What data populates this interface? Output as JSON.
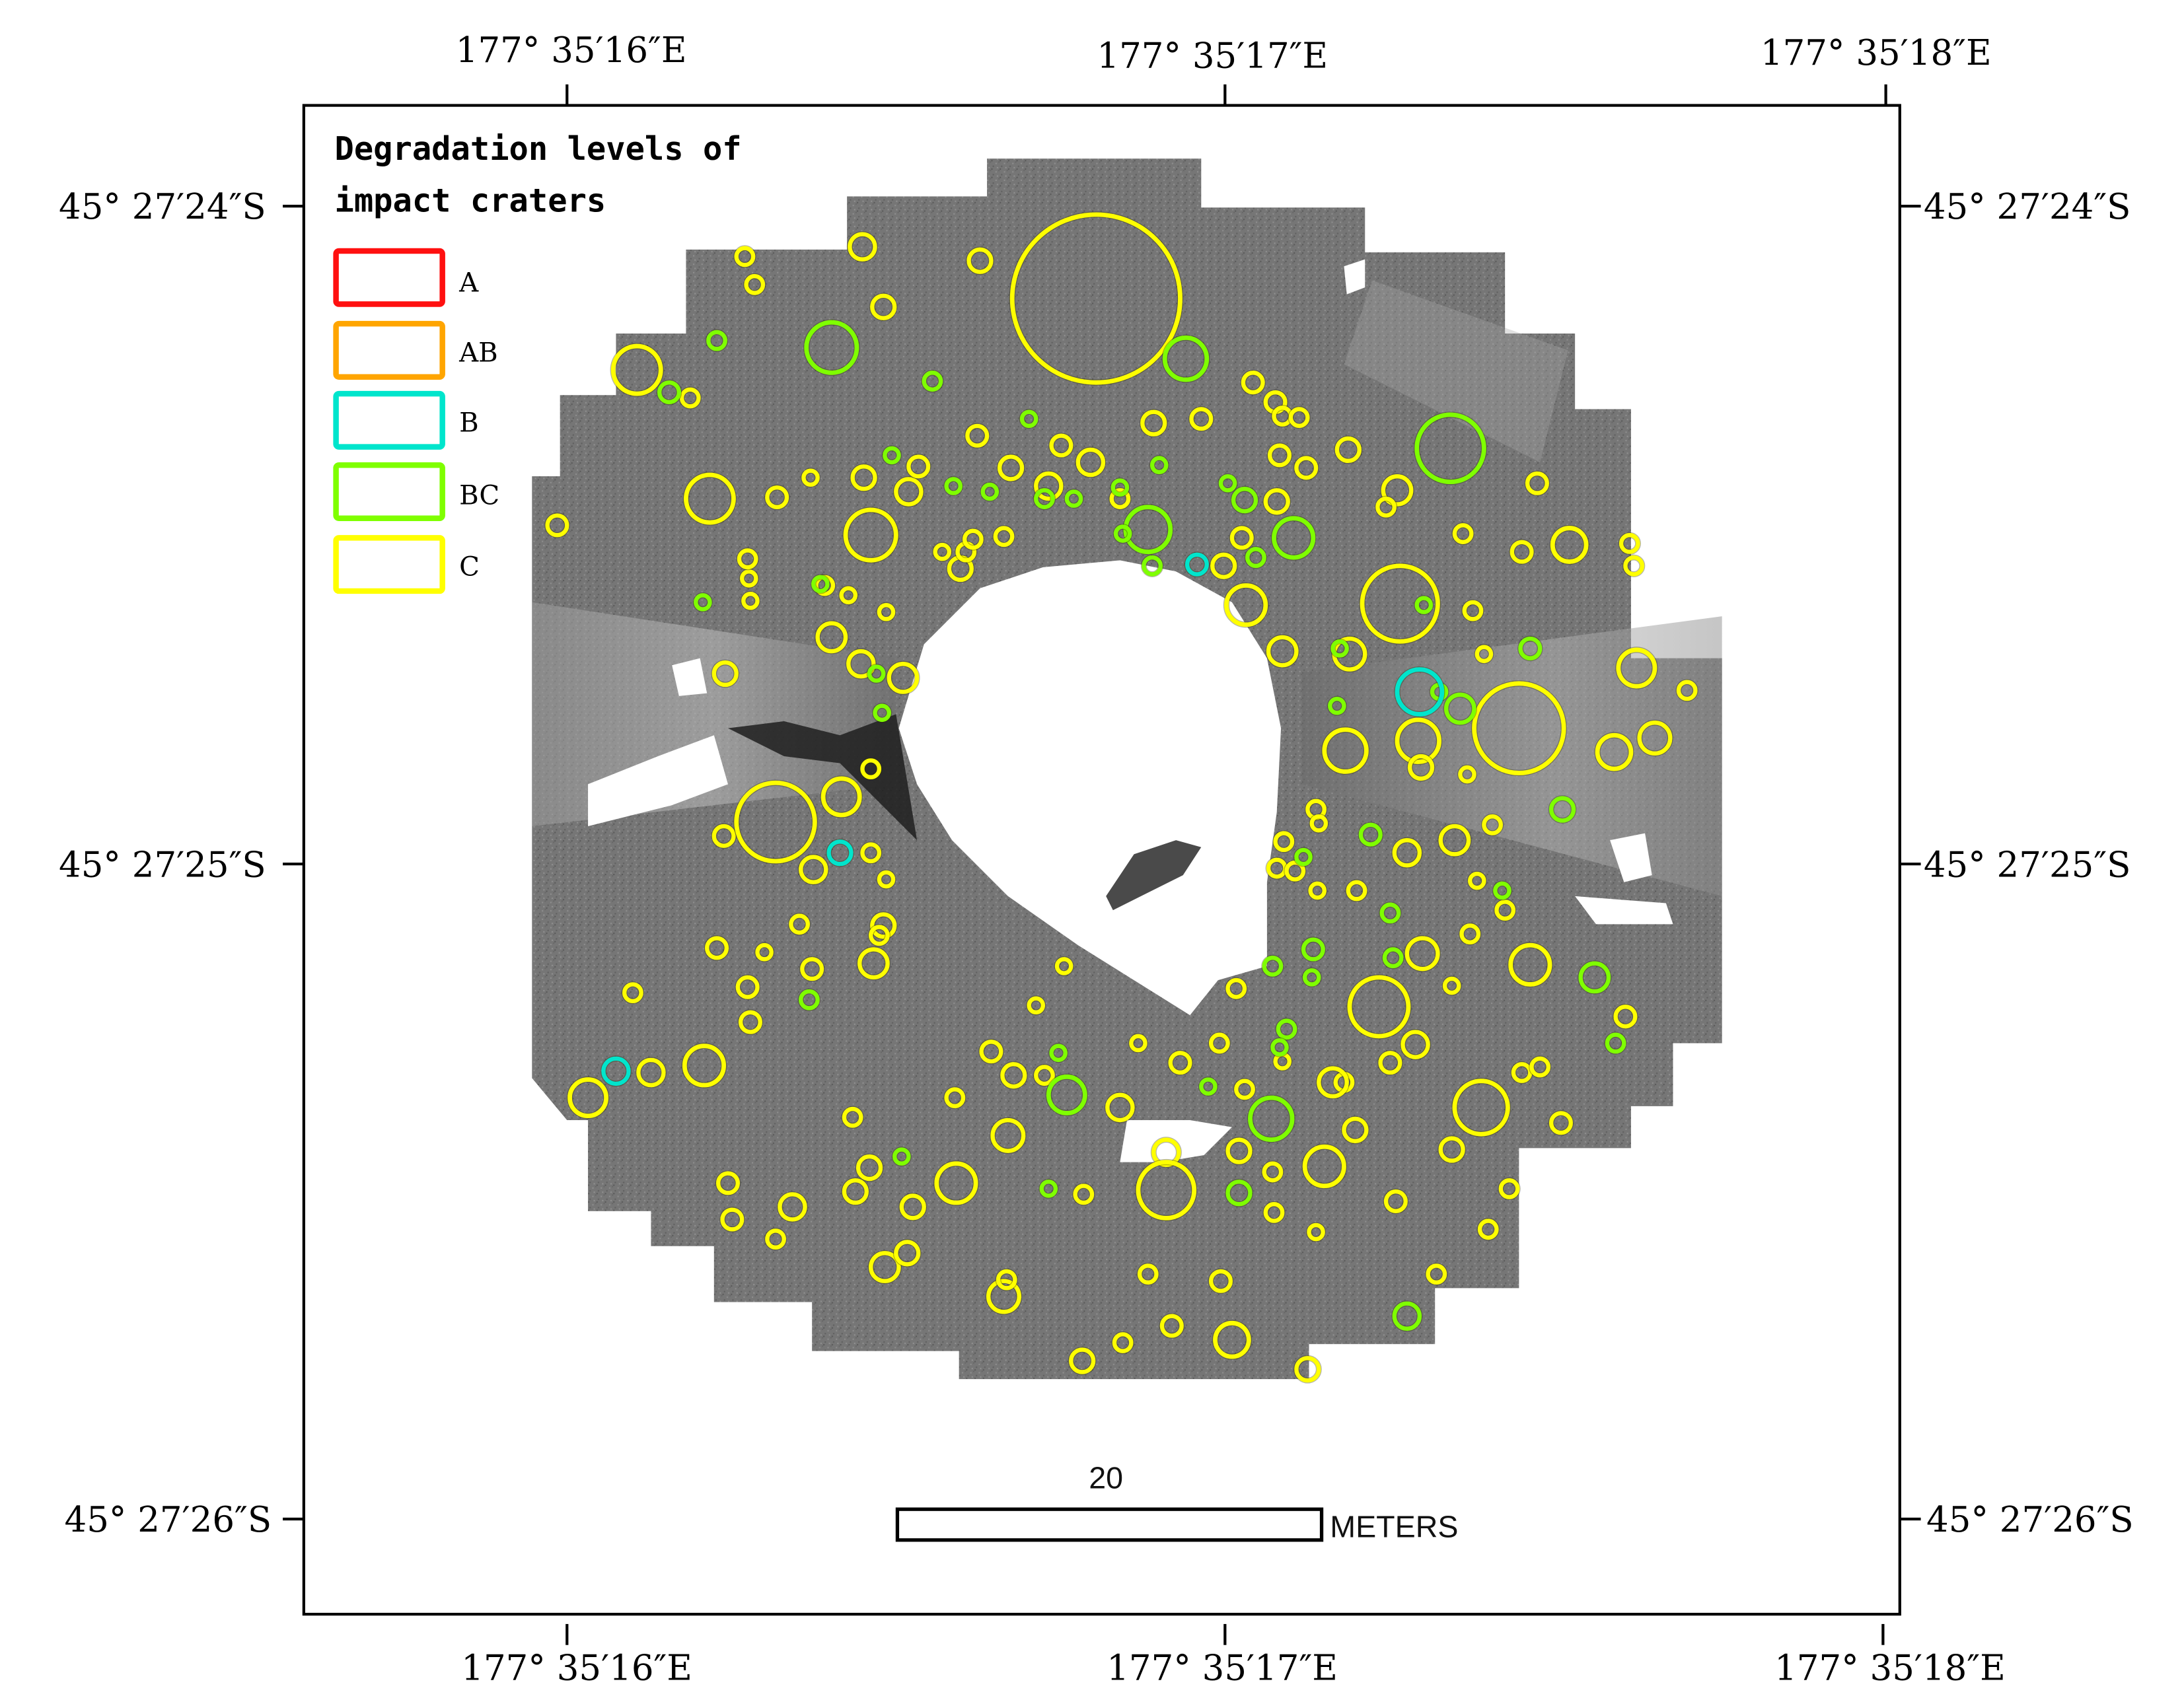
{
  "figure": {
    "legend": {
      "title_line1": "Degradation levels of",
      "title_line2": "impact craters",
      "items": [
        {
          "label": "A",
          "color": "#FF1010"
        },
        {
          "label": "AB",
          "color": "#FFA500"
        },
        {
          "label": "B",
          "color": "#00E5CC"
        },
        {
          "label": "BC",
          "color": "#7FFF00"
        },
        {
          "label": "C",
          "color": "#FFFF00"
        }
      ]
    },
    "axes": {
      "top_labels": [
        "177° 35′16″E",
        "177° 35′17″E",
        "177° 35′18″E"
      ],
      "bottom_labels": [
        "177° 35′16″E",
        "177° 35′17″E",
        "177° 35′18″E"
      ],
      "left_labels": [
        "45° 27′24″S",
        "45° 27′25″S",
        "45° 27′26″S"
      ],
      "right_labels": [
        "45° 27′24″S",
        "45° 27′25″S",
        "45° 27′26″S"
      ]
    },
    "scale_bar": {
      "value": "20",
      "unit": "METERS"
    },
    "colors": {
      "A": "#FF1010",
      "AB": "#FFA500",
      "B": "#00E5CC",
      "BC": "#7FFF00",
      "C": "#FFFF00",
      "terrain": "#7a7a7a",
      "terrain_dark": "#3c3c3c",
      "frame": "#000000"
    }
  },
  "craters": {
    "C": [
      [
        783,
        213,
        60
      ],
      [
        455,
        264,
        17
      ],
      [
        507,
        356,
        17
      ],
      [
        398,
        375,
        7
      ],
      [
        532,
        183,
        6
      ],
      [
        539,
        203,
        6
      ],
      [
        616,
        176,
        9
      ],
      [
        631,
        219,
        8
      ],
      [
        700,
        186,
        8
      ],
      [
        493,
        284,
        6
      ],
      [
        555,
        355,
        7
      ],
      [
        579,
        341,
        5
      ],
      [
        617,
        341,
        8
      ],
      [
        649,
        351,
        9
      ],
      [
        656,
        333,
        7
      ],
      [
        622,
        382,
        18
      ],
      [
        698,
        311,
        7
      ],
      [
        722,
        334,
        8
      ],
      [
        749,
        347,
        9
      ],
      [
        758,
        318,
        7
      ],
      [
        779,
        330,
        9
      ],
      [
        800,
        356,
        6
      ],
      [
        824,
        302,
        8
      ],
      [
        858,
        299,
        7
      ],
      [
        895,
        273,
        7
      ],
      [
        911,
        287,
        7
      ],
      [
        916,
        297,
        6
      ],
      [
        928,
        298,
        6
      ],
      [
        914,
        325,
        7
      ],
      [
        933,
        334,
        7
      ],
      [
        963,
        321,
        8
      ],
      [
        998,
        350,
        10
      ],
      [
        990,
        362,
        6
      ],
      [
        912,
        358,
        8
      ],
      [
        887,
        384,
        7
      ],
      [
        874,
        404,
        8
      ],
      [
        890,
        432,
        14
      ],
      [
        1000,
        431,
        27
      ],
      [
        1045,
        381,
        6
      ],
      [
        1098,
        345,
        7
      ],
      [
        1087,
        394,
        7
      ],
      [
        1121,
        389,
        12
      ],
      [
        1164,
        388,
        6
      ],
      [
        1167,
        404,
        6
      ],
      [
        1052,
        436,
        6
      ],
      [
        1060,
        467,
        5
      ],
      [
        964,
        467,
        11
      ],
      [
        916,
        465,
        10
      ],
      [
        961,
        536,
        15
      ],
      [
        1013,
        529,
        15
      ],
      [
        1015,
        548,
        8
      ],
      [
        1085,
        520,
        32
      ],
      [
        1153,
        537,
        12
      ],
      [
        1182,
        527,
        11
      ],
      [
        1169,
        477,
        13
      ],
      [
        1205,
        493,
        6
      ],
      [
        1048,
        553,
        5
      ],
      [
        940,
        578,
        6
      ],
      [
        942,
        588,
        5
      ],
      [
        917,
        601,
        6
      ],
      [
        1039,
        600,
        10
      ],
      [
        1066,
        589,
        6
      ],
      [
        1005,
        609,
        9
      ],
      [
        912,
        620,
        6
      ],
      [
        925,
        622,
        6
      ],
      [
        941,
        636,
        5
      ],
      [
        969,
        636,
        6
      ],
      [
        1055,
        629,
        5
      ],
      [
        1075,
        650,
        6
      ],
      [
        1050,
        667,
        6
      ],
      [
        1016,
        681,
        11
      ],
      [
        1093,
        689,
        14
      ],
      [
        985,
        719,
        21
      ],
      [
        1037,
        704,
        5
      ],
      [
        1161,
        726,
        7
      ],
      [
        1011,
        746,
        9
      ],
      [
        993,
        759,
        7
      ],
      [
        960,
        773,
        6
      ],
      [
        952,
        773,
        10
      ],
      [
        1087,
        766,
        6
      ],
      [
        1100,
        762,
        6
      ],
      [
        1058,
        791,
        19
      ],
      [
        1115,
        802,
        7
      ],
      [
        1037,
        821,
        8
      ],
      [
        1078,
        849,
        6
      ],
      [
        968,
        807,
        8
      ],
      [
        946,
        833,
        14
      ],
      [
        997,
        858,
        7
      ],
      [
        1063,
        878,
        6
      ],
      [
        1026,
        910,
        6
      ],
      [
        940,
        880,
        5
      ],
      [
        910,
        866,
        6
      ],
      [
        889,
        778,
        6
      ],
      [
        885,
        822,
        8
      ],
      [
        883,
        706,
        6
      ],
      [
        916,
        758,
        5
      ],
      [
        843,
        759,
        7
      ],
      [
        871,
        745,
        6
      ],
      [
        813,
        745,
        5
      ],
      [
        760,
        690,
        5
      ],
      [
        740,
        718,
        5
      ],
      [
        800,
        791,
        9
      ],
      [
        720,
        811,
        11
      ],
      [
        708,
        751,
        7
      ],
      [
        724,
        768,
        8
      ],
      [
        746,
        768,
        6
      ],
      [
        682,
        784,
        6
      ],
      [
        609,
        798,
        6
      ],
      [
        683,
        845,
        14
      ],
      [
        652,
        862,
        8
      ],
      [
        621,
        834,
        8
      ],
      [
        611,
        851,
        8
      ],
      [
        566,
        862,
        9
      ],
      [
        520,
        845,
        7
      ],
      [
        523,
        871,
        7
      ],
      [
        554,
        885,
        6
      ],
      [
        632,
        905,
        10
      ],
      [
        648,
        895,
        8
      ],
      [
        717,
        926,
        11
      ],
      [
        719,
        914,
        6
      ],
      [
        773,
        972,
        8
      ],
      [
        802,
        959,
        6
      ],
      [
        837,
        947,
        7
      ],
      [
        880,
        957,
        12
      ],
      [
        934,
        978,
        8
      ],
      [
        820,
        910,
        6
      ],
      [
        872,
        915,
        7
      ],
      [
        833,
        823,
        9
      ],
      [
        833,
        850,
        20
      ],
      [
        774,
        853,
        6
      ],
      [
        909,
        837,
        6
      ],
      [
        503,
        761,
        14
      ],
      [
        465,
        766,
        9
      ],
      [
        420,
        784,
        13
      ],
      [
        452,
        709,
        6
      ],
      [
        536,
        730,
        7
      ],
      [
        534,
        705,
        7
      ],
      [
        512,
        677,
        7
      ],
      [
        546,
        680,
        5
      ],
      [
        580,
        692,
        7
      ],
      [
        624,
        688,
        10
      ],
      [
        571,
        660,
        6
      ],
      [
        631,
        661,
        8
      ],
      [
        628,
        668,
        6
      ],
      [
        622,
        609,
        6
      ],
      [
        633,
        628,
        5
      ],
      [
        581,
        621,
        9
      ],
      [
        517,
        597,
        7
      ],
      [
        554,
        587,
        28
      ],
      [
        601,
        569,
        13
      ],
      [
        622,
        549,
        6
      ],
      [
        645,
        484,
        10
      ],
      [
        615,
        474,
        9
      ],
      [
        594,
        455,
        10
      ],
      [
        518,
        481,
        8
      ],
      [
        633,
        437,
        5
      ],
      [
        606,
        425,
        5
      ],
      [
        589,
        418,
        6
      ],
      [
        535,
        413,
        5
      ],
      [
        536,
        429,
        5
      ],
      [
        686,
        406,
        8
      ],
      [
        673,
        394,
        5
      ],
      [
        690,
        394,
        6
      ],
      [
        695,
        385,
        6
      ],
      [
        717,
        383,
        6
      ],
      [
        534,
        399,
        6
      ]
    ],
    "BC": [
      [
        594,
        248,
        18
      ],
      [
        847,
        256,
        15
      ],
      [
        1036,
        320,
        24
      ],
      [
        820,
        378,
        16
      ],
      [
        924,
        384,
        14
      ],
      [
        512,
        243,
        6
      ],
      [
        478,
        280,
        7
      ],
      [
        666,
        272,
        6
      ],
      [
        735,
        299,
        5
      ],
      [
        637,
        325,
        5
      ],
      [
        681,
        347,
        5
      ],
      [
        707,
        351,
        5
      ],
      [
        746,
        356,
        6
      ],
      [
        767,
        356,
        5
      ],
      [
        828,
        332,
        5
      ],
      [
        800,
        348,
        5
      ],
      [
        802,
        381,
        5
      ],
      [
        823,
        404,
        6
      ],
      [
        877,
        345,
        5
      ],
      [
        889,
        357,
        8
      ],
      [
        897,
        398,
        6
      ],
      [
        502,
        430,
        5
      ],
      [
        586,
        417,
        5
      ],
      [
        626,
        481,
        5
      ],
      [
        630,
        509,
        5
      ],
      [
        1093,
        463,
        7
      ],
      [
        1043,
        506,
        10
      ],
      [
        1028,
        494,
        5
      ],
      [
        955,
        504,
        5
      ],
      [
        957,
        463,
        5
      ],
      [
        1017,
        432,
        5
      ],
      [
        1116,
        578,
        8
      ],
      [
        979,
        596,
        7
      ],
      [
        931,
        612,
        5
      ],
      [
        993,
        652,
        6
      ],
      [
        938,
        678,
        7
      ],
      [
        909,
        690,
        6
      ],
      [
        937,
        698,
        5
      ],
      [
        1139,
        698,
        10
      ],
      [
        1154,
        745,
        6
      ],
      [
        995,
        684,
        6
      ],
      [
        919,
        735,
        6
      ],
      [
        762,
        782,
        13
      ],
      [
        908,
        799,
        15
      ],
      [
        863,
        776,
        5
      ],
      [
        914,
        748,
        5
      ],
      [
        644,
        826,
        5
      ],
      [
        749,
        849,
        5
      ],
      [
        885,
        852,
        8
      ],
      [
        1005,
        940,
        9
      ],
      [
        578,
        714,
        6
      ],
      [
        756,
        752,
        5
      ],
      [
        1073,
        636,
        5
      ]
    ],
    "B": [
      [
        1014,
        494,
        16
      ],
      [
        855,
        403,
        7
      ],
      [
        600,
        609,
        8
      ],
      [
        440,
        765,
        9
      ]
    ],
    "AB": [],
    "A": []
  }
}
